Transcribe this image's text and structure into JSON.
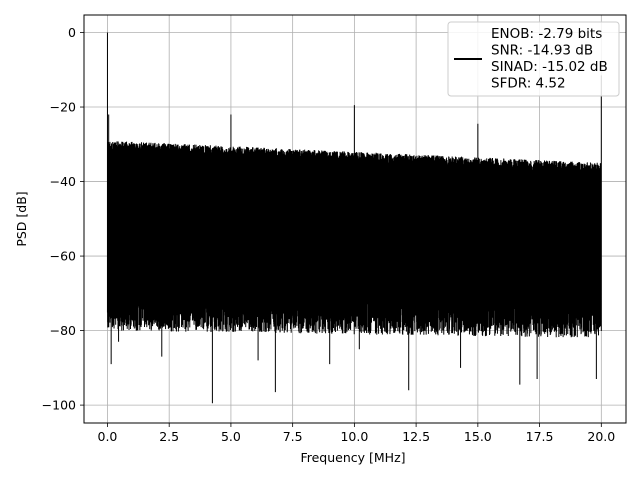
{
  "chart_data": {
    "type": "line",
    "xlabel": "Frequency [MHz]",
    "ylabel": "PSD [dB]",
    "xlim": [
      -0.95,
      21.0
    ],
    "ylim": [
      -104.8,
      4.7
    ],
    "x_ticks": [
      0.0,
      2.5,
      5.0,
      7.5,
      10.0,
      12.5,
      15.0,
      17.5,
      20.0
    ],
    "x_tick_labels": [
      "0.0",
      "2.5",
      "5.0",
      "7.5",
      "10.0",
      "12.5",
      "15.0",
      "17.5",
      "20.0"
    ],
    "y_ticks": [
      0,
      -20,
      -40,
      -60,
      -80,
      -100
    ],
    "y_tick_labels": [
      "0",
      "−20",
      "−40",
      "−60",
      "−80",
      "−100"
    ],
    "grid": true,
    "legend_position": "top-right",
    "series_color": "#000000",
    "series": [
      {
        "name": "ENOB: -2.79 bits\nSNR: -14.93 dB\nSINAD: -15.02 dB\nSFDR: 4.52",
        "x_range": [
          0.0,
          20.0
        ],
        "noise_floor_upper_db": [
          -29,
          -35
        ],
        "noise_floor_lower_db": [
          -73,
          -75
        ],
        "noise_band_center_db": -52,
        "peaks": [
          {
            "x": 0.0,
            "y": 0.0
          },
          {
            "x": 0.05,
            "y": -22.0
          },
          {
            "x": 5.0,
            "y": -22.0
          },
          {
            "x": 10.0,
            "y": -19.5
          },
          {
            "x": 15.0,
            "y": -24.5
          },
          {
            "x": 20.0,
            "y": -11.5
          }
        ],
        "deep_dips": [
          {
            "x": 0.15,
            "y": -89.0
          },
          {
            "x": 0.45,
            "y": -83.0
          },
          {
            "x": 2.2,
            "y": -87.0
          },
          {
            "x": 4.25,
            "y": -99.5
          },
          {
            "x": 6.1,
            "y": -88.0
          },
          {
            "x": 6.8,
            "y": -96.5
          },
          {
            "x": 9.0,
            "y": -89.0
          },
          {
            "x": 10.2,
            "y": -85.0
          },
          {
            "x": 12.2,
            "y": -96.0
          },
          {
            "x": 14.3,
            "y": -90.0
          },
          {
            "x": 16.7,
            "y": -94.5
          },
          {
            "x": 17.4,
            "y": -93.0
          },
          {
            "x": 19.8,
            "y": -93.0
          }
        ]
      }
    ]
  }
}
